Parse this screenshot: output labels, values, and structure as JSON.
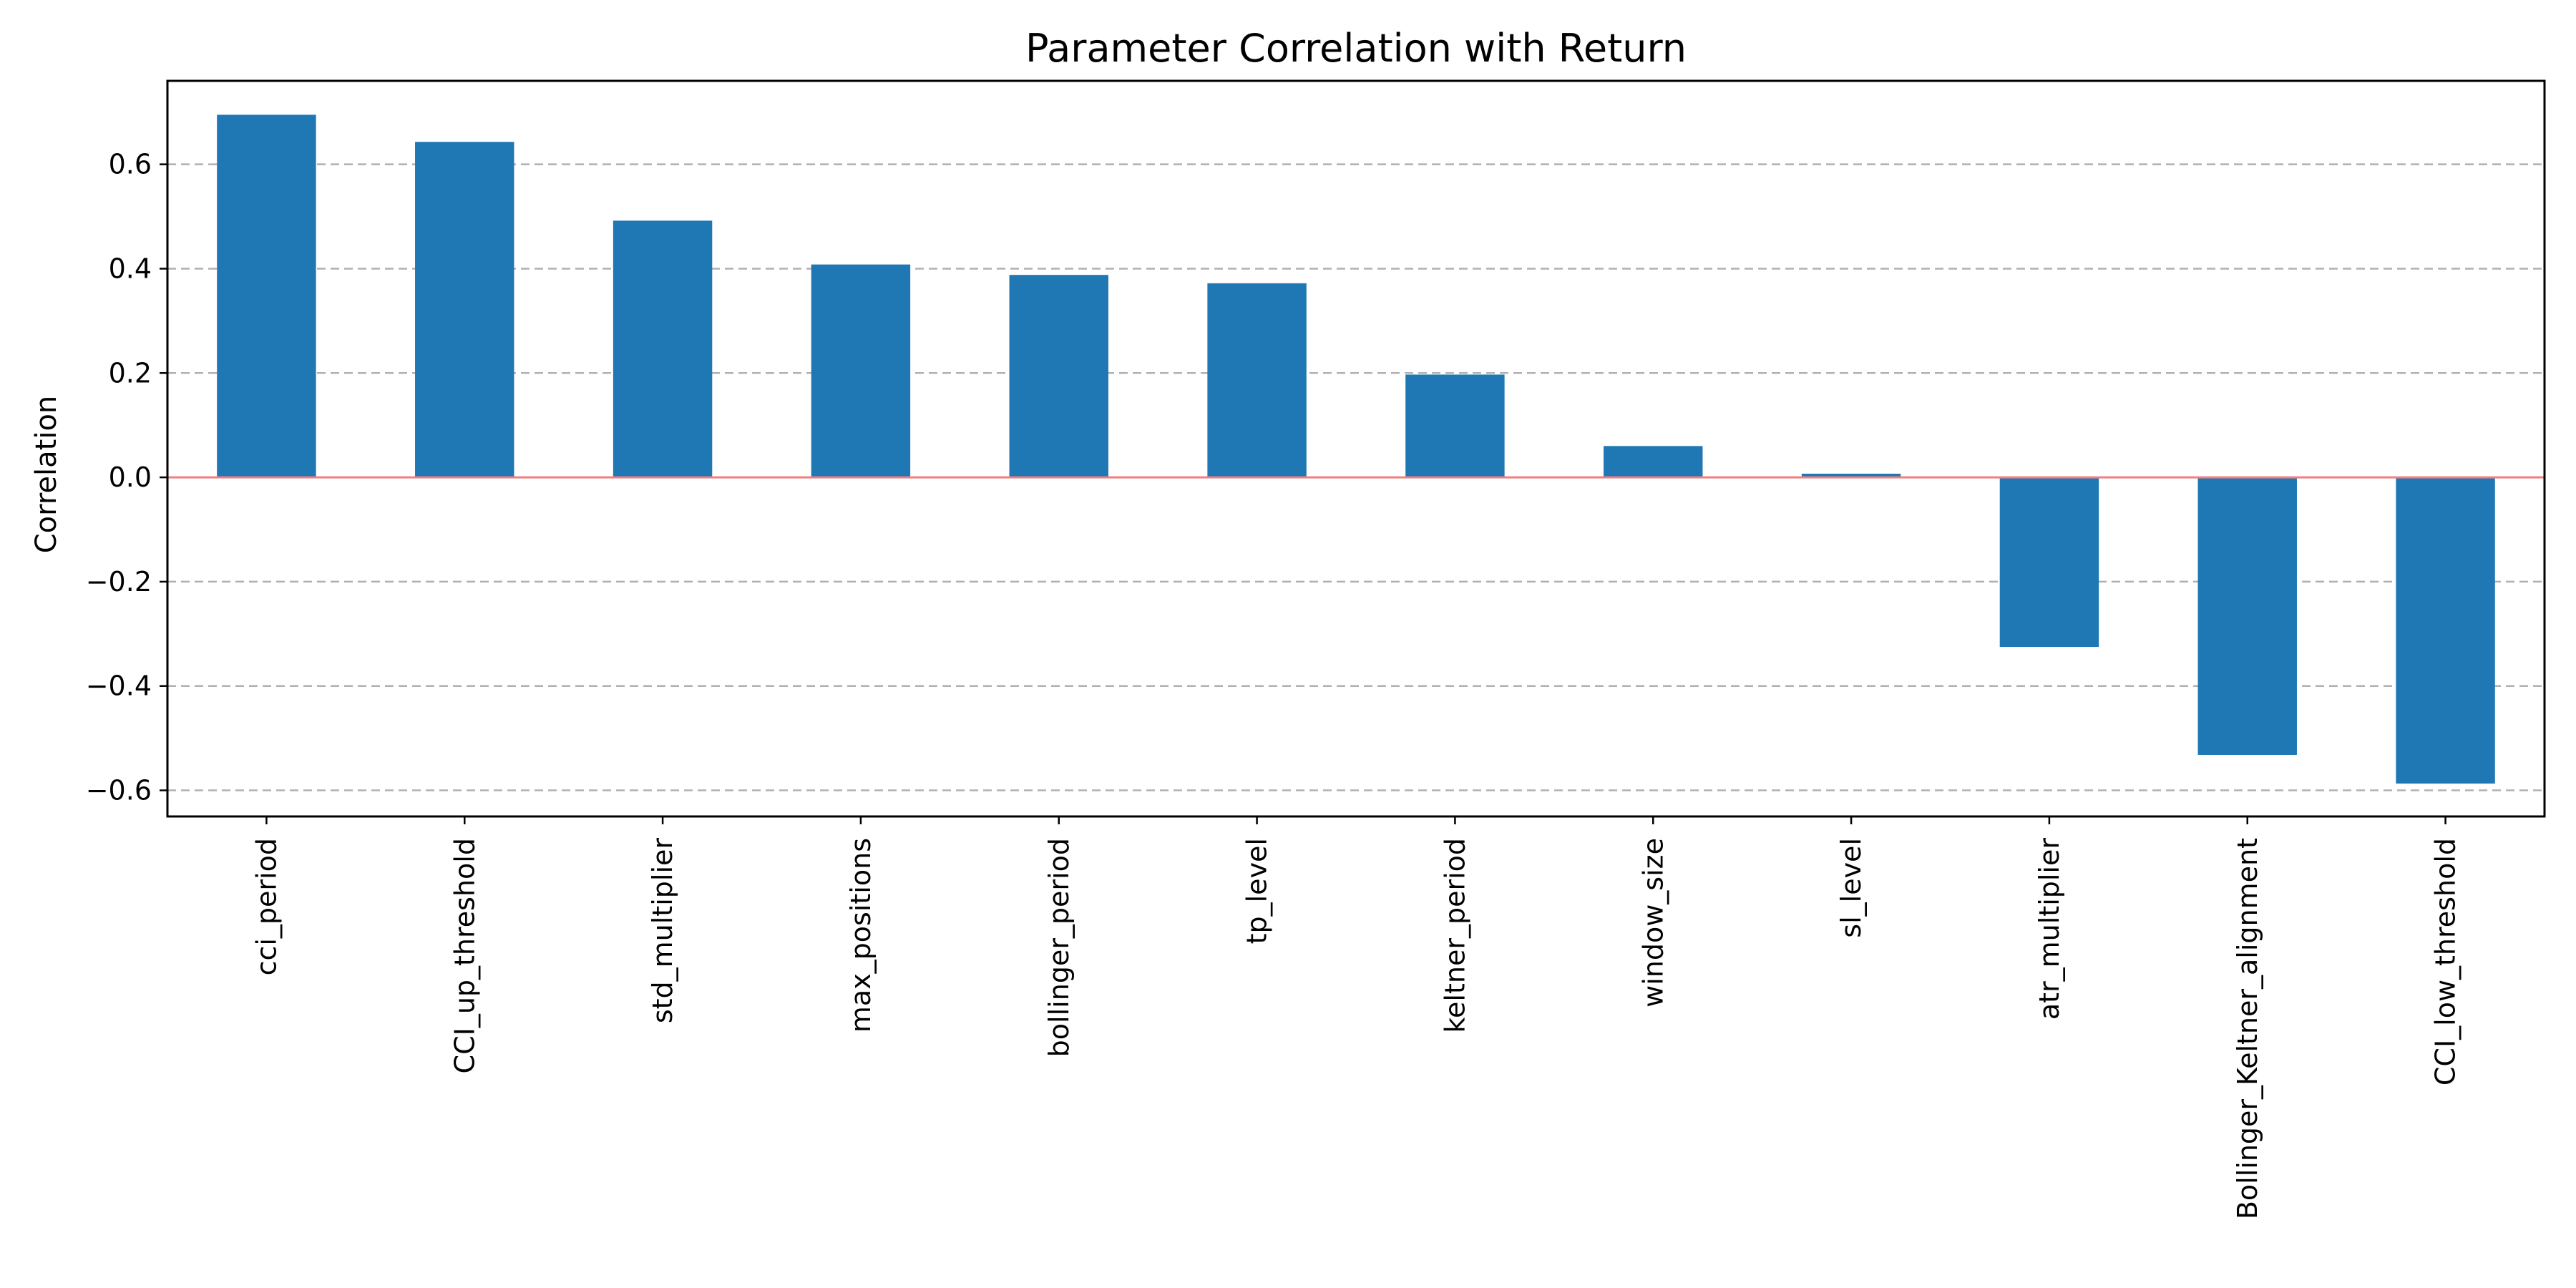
{
  "chart_data": {
    "type": "bar",
    "title": "Parameter Correlation with Return",
    "xlabel": "",
    "ylabel": "Correlation",
    "categories": [
      "cci_period",
      "CCI_up_threshold",
      "std_multiplier",
      "max_positions",
      "bollinger_period",
      "tp_level",
      "keltner_period",
      "window_size",
      "sl_level",
      "atr_multiplier",
      "Bollinger_Keltner_alignment",
      "CCI_low_threshold"
    ],
    "values": [
      0.695,
      0.643,
      0.492,
      0.408,
      0.388,
      0.372,
      0.197,
      0.06,
      0.007,
      -0.325,
      -0.532,
      -0.587
    ],
    "ylim": [
      -0.65,
      0.76
    ],
    "yticks": [
      -0.6,
      -0.4,
      -0.2,
      0.0,
      0.2,
      0.4,
      0.6
    ],
    "ytick_labels": [
      "−0.6",
      "−0.4",
      "−0.2",
      "0.0",
      "0.2",
      "0.4",
      "0.6"
    ],
    "grid": "y-dashed",
    "reference_line": 0,
    "colors": {
      "bar": "#1f77b4",
      "grid": "#b0b0b0",
      "zero_line": "#f08080",
      "axes": "#000000"
    }
  }
}
